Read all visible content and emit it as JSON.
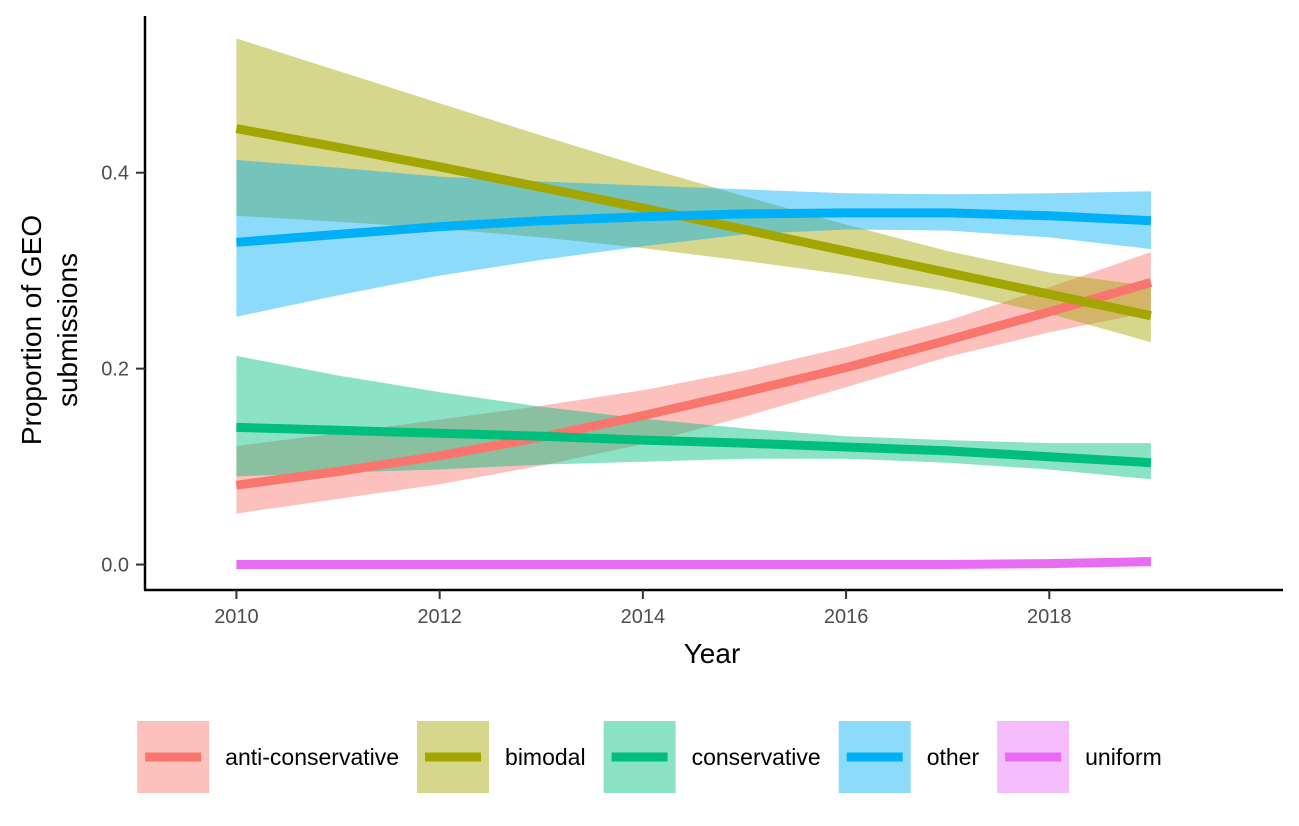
{
  "chart_data": {
    "type": "line",
    "title": "",
    "xlabel": "Year",
    "ylabel": "Proportion of GEO submissions",
    "xlim": [
      2009.1,
      2020.3
    ],
    "ylim": [
      -0.026,
      0.56
    ],
    "x_ticks": [
      2010,
      2012,
      2014,
      2016,
      2018
    ],
    "x_tick_labels": [
      "2010",
      "2012",
      "2014",
      "2016",
      "2018"
    ],
    "y_ticks": [
      0.0,
      0.2,
      0.4
    ],
    "y_tick_labels": [
      "0.0",
      "0.2",
      "0.4"
    ],
    "grid": false,
    "legend_position": "bottom",
    "x": [
      2010,
      2011,
      2012,
      2013,
      2014,
      2015,
      2016,
      2017,
      2018,
      2019
    ],
    "series": [
      {
        "name": "anti-conservative",
        "color": "#F8766D",
        "values": [
          0.081,
          0.095,
          0.111,
          0.13,
          0.152,
          0.176,
          0.201,
          0.229,
          0.258,
          0.288
        ],
        "lower": [
          0.052,
          0.067,
          0.082,
          0.101,
          0.123,
          0.151,
          0.181,
          0.212,
          0.237,
          0.258
        ],
        "upper": [
          0.121,
          0.134,
          0.148,
          0.162,
          0.178,
          0.198,
          0.222,
          0.249,
          0.283,
          0.319
        ]
      },
      {
        "name": "bimodal",
        "color": "#A3A500",
        "values": [
          0.445,
          0.426,
          0.406,
          0.385,
          0.364,
          0.342,
          0.32,
          0.298,
          0.276,
          0.254
        ],
        "lower": [
          0.356,
          0.35,
          0.343,
          0.334,
          0.323,
          0.31,
          0.296,
          0.279,
          0.256,
          0.227
        ],
        "upper": [
          0.537,
          0.504,
          0.471,
          0.438,
          0.406,
          0.376,
          0.347,
          0.32,
          0.298,
          0.284
        ]
      },
      {
        "name": "conservative",
        "color": "#00BF7D",
        "values": [
          0.14,
          0.137,
          0.134,
          0.131,
          0.127,
          0.124,
          0.12,
          0.116,
          0.11,
          0.104
        ],
        "lower": [
          0.09,
          0.094,
          0.097,
          0.102,
          0.105,
          0.108,
          0.108,
          0.104,
          0.097,
          0.087
        ],
        "upper": [
          0.213,
          0.193,
          0.176,
          0.161,
          0.149,
          0.139,
          0.131,
          0.127,
          0.124,
          0.124
        ]
      },
      {
        "name": "other",
        "color": "#00B0F6",
        "values": [
          0.329,
          0.337,
          0.345,
          0.351,
          0.355,
          0.358,
          0.359,
          0.359,
          0.356,
          0.351
        ],
        "lower": [
          0.253,
          0.275,
          0.295,
          0.311,
          0.325,
          0.337,
          0.342,
          0.341,
          0.334,
          0.322
        ],
        "upper": [
          0.413,
          0.405,
          0.396,
          0.391,
          0.387,
          0.383,
          0.379,
          0.378,
          0.379,
          0.381
        ]
      },
      {
        "name": "uniform",
        "color": "#E76BF3",
        "values": [
          0.0,
          0.0,
          0.0,
          0.0,
          0.0,
          0.0,
          0.0,
          0.0,
          0.001,
          0.003
        ],
        "lower": [
          0.0,
          0.0,
          0.0,
          0.0,
          0.0,
          0.0,
          0.0,
          0.0,
          0.0,
          0.0
        ],
        "upper": [
          0.001,
          0.001,
          0.001,
          0.001,
          0.001,
          0.001,
          0.001,
          0.002,
          0.003,
          0.008
        ]
      }
    ]
  }
}
